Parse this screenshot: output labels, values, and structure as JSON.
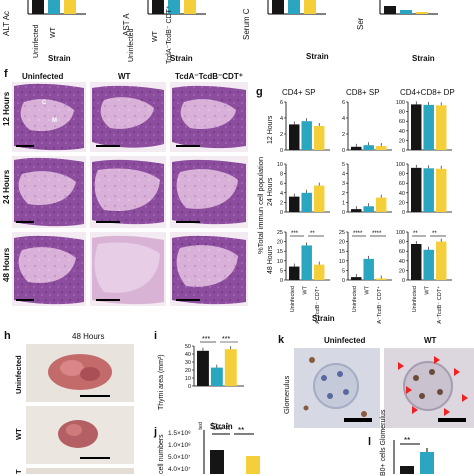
{
  "colors": {
    "black": "#151515",
    "teal": "#2aa6c1",
    "yellow": "#f4cf3a",
    "histo_light": "#ddb3d9",
    "histo_dark": "#8a4d9c",
    "tissue": "#c07070"
  },
  "top_row": {
    "ylabels": [
      "ALT Ac",
      "AST A",
      "Serum C",
      "Ser"
    ],
    "ticklabels": [
      "Uninfected",
      "WT",
      "TcdA⁻TcdB⁻ CDT⁺"
    ],
    "xlabel": "Strain"
  },
  "panel_f": {
    "letter": "f",
    "columns": [
      "Uninfected",
      "WT",
      "TcdA⁻TcdB⁻CDT⁺"
    ],
    "rows": [
      "12 Hours",
      "24 Hours",
      "48 Hours"
    ],
    "markers": [
      "C",
      "M"
    ]
  },
  "panel_g": {
    "letter": "g",
    "columns": [
      "CD4+ SP",
      "CD8+ SP",
      "CD4+CD8+ DP"
    ],
    "rows": [
      "12 Hours",
      "24 Hours",
      "48 Hours"
    ],
    "ylabel": "%Total immun cell population",
    "xlabel": "Strain",
    "ticklabels": [
      "Uninfected",
      "WT",
      "TcdA⁻TcdB⁻ CDT⁺"
    ],
    "significance": {
      "cd4_48": [
        "***",
        "**"
      ],
      "cd8_48": [
        "****",
        "****"
      ],
      "dp_48": [
        "**",
        "**"
      ]
    }
  },
  "panel_h": {
    "letter": "h",
    "title": "48 Hours",
    "rows": [
      "Uninfected",
      "WT",
      "T"
    ]
  },
  "panel_i": {
    "letter": "i",
    "ylabel": "Thymi area (mm²)",
    "ticks": [
      "0",
      "10",
      "20",
      "30",
      "40",
      "50"
    ],
    "xlabel": "Strain",
    "ticklabels": [
      "Uninfected",
      "WT",
      "TcdA⁻TcdB⁻ CDT⁺"
    ],
    "sig": [
      "***",
      "***"
    ]
  },
  "panel_j": {
    "letter": "j",
    "ylabel": "cell numbers",
    "ticks": [
      "1.5×10⁸",
      "1.0×10⁸",
      "5.0×10⁷",
      "4.0×10⁷"
    ],
    "sig": [
      "**",
      "**"
    ]
  },
  "panel_k": {
    "letter": "k",
    "columns": [
      "Uninfected",
      "WT"
    ],
    "row": "Glomerulus"
  },
  "panel_l": {
    "letter": "l",
    "ylabel": "B0+ cells Glomerulus",
    "sig": "**"
  },
  "chart_data": [
    {
      "type": "bar",
      "title": "CD4+ SP",
      "ylabel": "12 Hours",
      "categories": [
        "Uninfected",
        "WT",
        "TcdA⁻TcdB⁻ CDT⁺"
      ],
      "values": [
        3.2,
        3.6,
        3.0
      ],
      "ylim": [
        0,
        6
      ],
      "ticks": [
        "0",
        "2",
        "4",
        "6"
      ]
    },
    {
      "type": "bar",
      "title": "CD8+ SP",
      "ylabel": "12 Hours",
      "categories": [
        "Uninfected",
        "WT",
        "TcdA⁻TcdB⁻ CDT⁺"
      ],
      "values": [
        0.4,
        0.6,
        0.5
      ],
      "ylim": [
        0,
        6
      ],
      "ticks": [
        "0",
        "2",
        "4",
        "6"
      ]
    },
    {
      "type": "bar",
      "title": "CD4+CD8+ DP",
      "ylabel": "12 Hours",
      "categories": [
        "Uninfected",
        "WT",
        "TcdA⁻TcdB⁻ CDT⁺"
      ],
      "values": [
        95,
        94,
        93
      ],
      "ylim": [
        0,
        100
      ],
      "ticks": [
        "0",
        "20",
        "40",
        "60",
        "80",
        "100"
      ]
    },
    {
      "type": "bar",
      "ylabel": "24 Hours",
      "categories": [
        "Uninfected",
        "WT",
        "TcdA⁻TcdB⁻ CDT⁺"
      ],
      "values": [
        3.2,
        4.0,
        5.5
      ],
      "ylim": [
        0,
        10
      ],
      "ticks": [
        "0",
        "2",
        "4",
        "6",
        "8",
        "10"
      ]
    },
    {
      "type": "bar",
      "ylabel": "24 Hours",
      "categories": [
        "Uninfected",
        "WT",
        "TcdA⁻TcdB⁻ CDT⁺"
      ],
      "values": [
        0.3,
        0.6,
        1.5
      ],
      "ylim": [
        0,
        5
      ],
      "ticks": [
        "0",
        "1",
        "2",
        "3",
        "4",
        "5"
      ]
    },
    {
      "type": "bar",
      "ylabel": "24 Hours",
      "categories": [
        "Uninfected",
        "WT",
        "TcdA⁻TcdB⁻ CDT⁺"
      ],
      "values": [
        92,
        91,
        90
      ],
      "ylim": [
        0,
        100
      ],
      "ticks": [
        "0",
        "20",
        "40",
        "60",
        "80",
        "100"
      ]
    },
    {
      "type": "bar",
      "ylabel": "48 Hours",
      "categories": [
        "Uninfected",
        "WT",
        "TcdA⁻TcdB⁻ CDT⁺"
      ],
      "values": [
        7,
        18,
        8
      ],
      "ylim": [
        0,
        25
      ],
      "ticks": [
        "0",
        "5",
        "10",
        "15",
        "20",
        "25"
      ]
    },
    {
      "type": "bar",
      "ylabel": "48 Hours",
      "categories": [
        "Uninfected",
        "WT",
        "TcdA⁻TcdB⁻ CDT⁺"
      ],
      "values": [
        1.5,
        11,
        0.8
      ],
      "ylim": [
        0,
        25
      ],
      "ticks": [
        "0",
        "5",
        "10",
        "15",
        "20",
        "25"
      ]
    },
    {
      "type": "bar",
      "ylabel": "48 Hours",
      "categories": [
        "Uninfected",
        "WT",
        "TcdA⁻TcdB⁻ CDT⁺"
      ],
      "values": [
        75,
        63,
        80
      ],
      "ylim": [
        0,
        100
      ],
      "ticks": [
        "0",
        "20",
        "40",
        "60",
        "80",
        "100"
      ]
    },
    {
      "type": "bar",
      "ylabel": "Thymi area (mm²)",
      "categories": [
        "Uninfected",
        "WT",
        "TcdA⁻TcdB⁻ CDT⁺"
      ],
      "values": [
        44,
        23,
        46
      ],
      "ylim": [
        0,
        50
      ],
      "ticks": [
        "0",
        "10",
        "20",
        "30",
        "40",
        "50"
      ]
    }
  ]
}
